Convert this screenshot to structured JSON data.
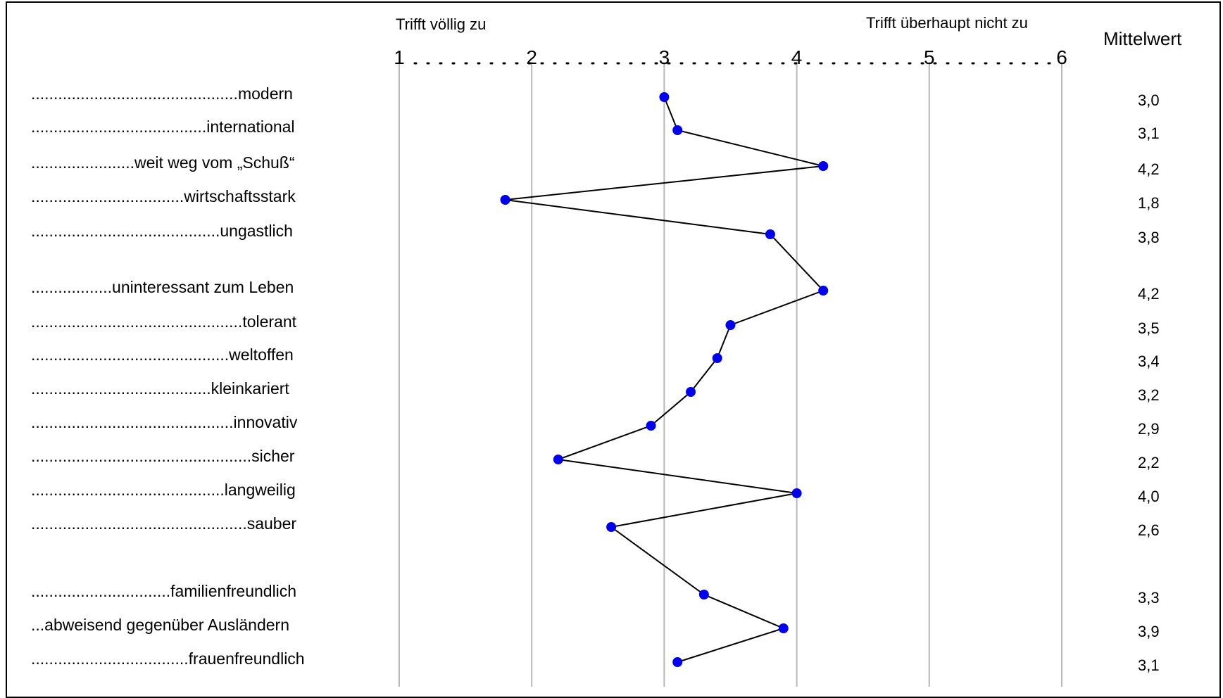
{
  "chart_data": {
    "type": "line",
    "header_left": "Trifft völlig zu",
    "header_right": "Trifft überhaupt nicht zu",
    "mean_label": "Mittelwert",
    "scale_ticks": [
      1,
      2,
      3,
      4,
      5,
      6
    ],
    "xlim": [
      1,
      6
    ],
    "grid": true,
    "point_color": "#0000ee",
    "line_color": "#000000",
    "items": [
      {
        "label": "..............................................modern",
        "value": 3.0,
        "display": "3,0"
      },
      {
        "label": ".......................................international",
        "value": 3.1,
        "display": "3,1"
      },
      {
        "label": ".......................weit weg vom „Schuß“",
        "value": 4.2,
        "display": "4,2"
      },
      {
        "label": "..................................wirtschaftsstark",
        "value": 1.8,
        "display": "1,8"
      },
      {
        "label": "..........................................ungastlich",
        "value": 3.8,
        "display": "3,8"
      },
      {
        "label": "..................uninteressant zum Leben",
        "value": 4.2,
        "display": "4,2"
      },
      {
        "label": "...............................................tolerant",
        "value": 3.5,
        "display": "3,5"
      },
      {
        "label": "............................................weltoffen",
        "value": 3.4,
        "display": "3,4"
      },
      {
        "label": "........................................kleinkariert",
        "value": 3.2,
        "display": "3,2"
      },
      {
        "label": ".............................................innovativ",
        "value": 2.9,
        "display": "2,9"
      },
      {
        "label": ".................................................sicher",
        "value": 2.2,
        "display": "2,2"
      },
      {
        "label": "...........................................langweilig",
        "value": 4.0,
        "display": "4,0"
      },
      {
        "label": "................................................sauber",
        "value": 2.6,
        "display": "2,6"
      },
      {
        "label": "...............................familienfreundlich",
        "value": 3.3,
        "display": "3,3"
      },
      {
        "label": "...abweisend gegenüber Ausländern",
        "value": 3.9,
        "display": "3,9"
      },
      {
        "label": "...................................frauenfreundlich",
        "value": 3.1,
        "display": "3,1"
      }
    ]
  }
}
